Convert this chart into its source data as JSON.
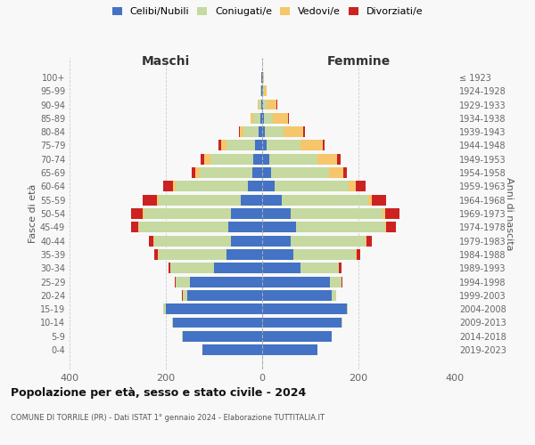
{
  "age_groups": [
    "0-4",
    "5-9",
    "10-14",
    "15-19",
    "20-24",
    "25-29",
    "30-34",
    "35-39",
    "40-44",
    "45-49",
    "50-54",
    "55-59",
    "60-64",
    "65-69",
    "70-74",
    "75-79",
    "80-84",
    "85-89",
    "90-94",
    "95-99",
    "100+"
  ],
  "birth_years": [
    "2019-2023",
    "2014-2018",
    "2009-2013",
    "2004-2008",
    "1999-2003",
    "1994-1998",
    "1989-1993",
    "1984-1988",
    "1979-1983",
    "1974-1978",
    "1969-1973",
    "1964-1968",
    "1959-1963",
    "1954-1958",
    "1949-1953",
    "1944-1948",
    "1939-1943",
    "1934-1938",
    "1929-1933",
    "1924-1928",
    "≤ 1923"
  ],
  "males": {
    "celibe": [
      125,
      165,
      185,
      200,
      155,
      150,
      100,
      75,
      65,
      70,
      65,
      45,
      30,
      20,
      18,
      15,
      8,
      4,
      2,
      1,
      1
    ],
    "coniugato": [
      0,
      1,
      2,
      5,
      10,
      30,
      90,
      140,
      160,
      185,
      180,
      170,
      150,
      110,
      90,
      60,
      30,
      15,
      5,
      2,
      1
    ],
    "vedovo": [
      0,
      0,
      0,
      0,
      0,
      0,
      0,
      1,
      1,
      2,
      3,
      4,
      5,
      8,
      12,
      10,
      8,
      5,
      2,
      0,
      0
    ],
    "divorziato": [
      0,
      0,
      0,
      0,
      1,
      2,
      5,
      8,
      10,
      15,
      25,
      30,
      20,
      8,
      8,
      5,
      2,
      1,
      0,
      0,
      0
    ]
  },
  "females": {
    "nubile": [
      115,
      145,
      165,
      175,
      145,
      140,
      80,
      65,
      60,
      70,
      60,
      40,
      25,
      18,
      15,
      10,
      5,
      3,
      2,
      1,
      1
    ],
    "coniugata": [
      0,
      0,
      1,
      3,
      8,
      25,
      80,
      130,
      155,
      185,
      190,
      180,
      155,
      120,
      100,
      70,
      40,
      20,
      8,
      3,
      1
    ],
    "vedova": [
      0,
      0,
      0,
      0,
      0,
      0,
      0,
      1,
      2,
      3,
      5,
      8,
      15,
      30,
      40,
      45,
      40,
      30,
      20,
      5,
      1
    ],
    "divorziata": [
      0,
      0,
      0,
      0,
      1,
      2,
      4,
      8,
      10,
      20,
      30,
      30,
      20,
      8,
      8,
      5,
      3,
      2,
      1,
      0,
      0
    ]
  },
  "colors": {
    "celibe_nubile": "#4472C4",
    "coniugato_a": "#C5D9A0",
    "vedovo_a": "#F5C76A",
    "divorziato_a": "#CC2222"
  },
  "xlim": 400,
  "title": "Popolazione per età, sesso e stato civile - 2024",
  "subtitle": "COMUNE DI TORRILE (PR) - Dati ISTAT 1° gennaio 2024 - Elaborazione TUTTITALIA.IT",
  "ylabel_left": "Fasce di età",
  "ylabel_right": "Anni di nascita",
  "xlabel_left": "Maschi",
  "xlabel_right": "Femmine",
  "background_color": "#f8f8f8",
  "grid_color": "#cccccc"
}
